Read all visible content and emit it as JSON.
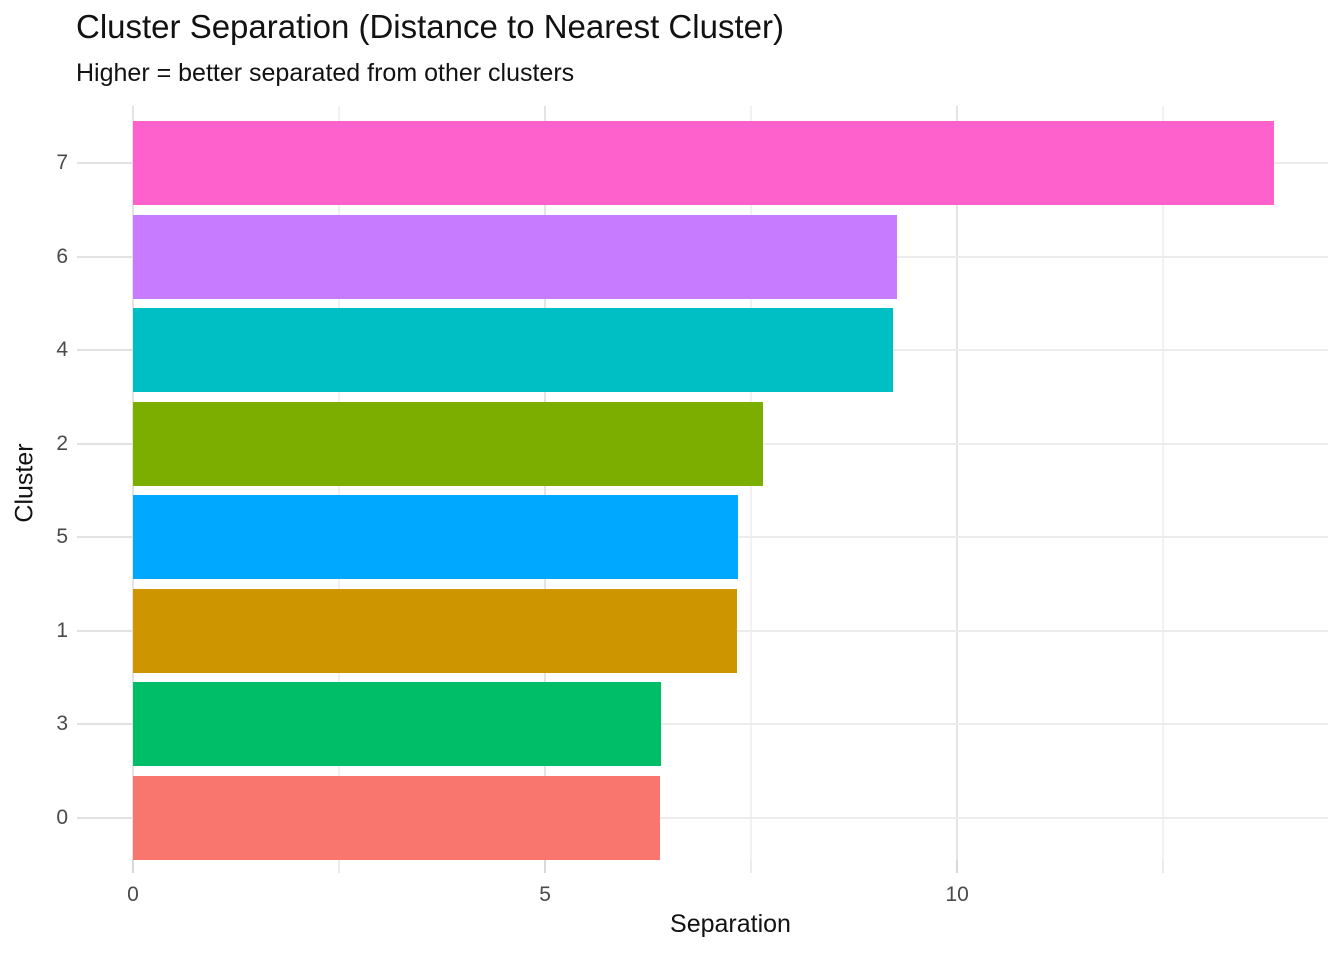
{
  "title": "Cluster Separation (Distance to Nearest Cluster)",
  "subtitle": "Higher = better separated from other clusters",
  "chart_data": {
    "type": "bar",
    "orientation": "horizontal",
    "title": "Cluster Separation (Distance to Nearest Cluster)",
    "subtitle": "Higher = better separated from other clusters",
    "xlabel": "Separation",
    "ylabel": "Cluster",
    "categories": [
      "7",
      "6",
      "4",
      "2",
      "5",
      "1",
      "3",
      "0"
    ],
    "values": [
      13.85,
      9.27,
      9.22,
      7.65,
      7.34,
      7.33,
      6.41,
      6.4
    ],
    "bar_colors": [
      "#FF61CC",
      "#C77CFF",
      "#00BFC4",
      "#7CAE00",
      "#00A9FF",
      "#CD9600",
      "#00BE67",
      "#F8766D"
    ],
    "xlim": [
      0,
      14.5
    ],
    "x_major_ticks": [
      0,
      5,
      10
    ],
    "x_minor_ticks": [
      2.5,
      7.5,
      12.5
    ],
    "x_tick_labels": [
      "0",
      "5",
      "10"
    ],
    "grid": true,
    "legend": "none",
    "sorted": "descending"
  },
  "colors": {
    "background": "#ffffff",
    "grid_major": "#e4e4e4",
    "grid_minor": "#f1f1f1",
    "grid_horizontal": "#ececec",
    "tick_label": "#4a4a4a",
    "text": "#121212"
  }
}
